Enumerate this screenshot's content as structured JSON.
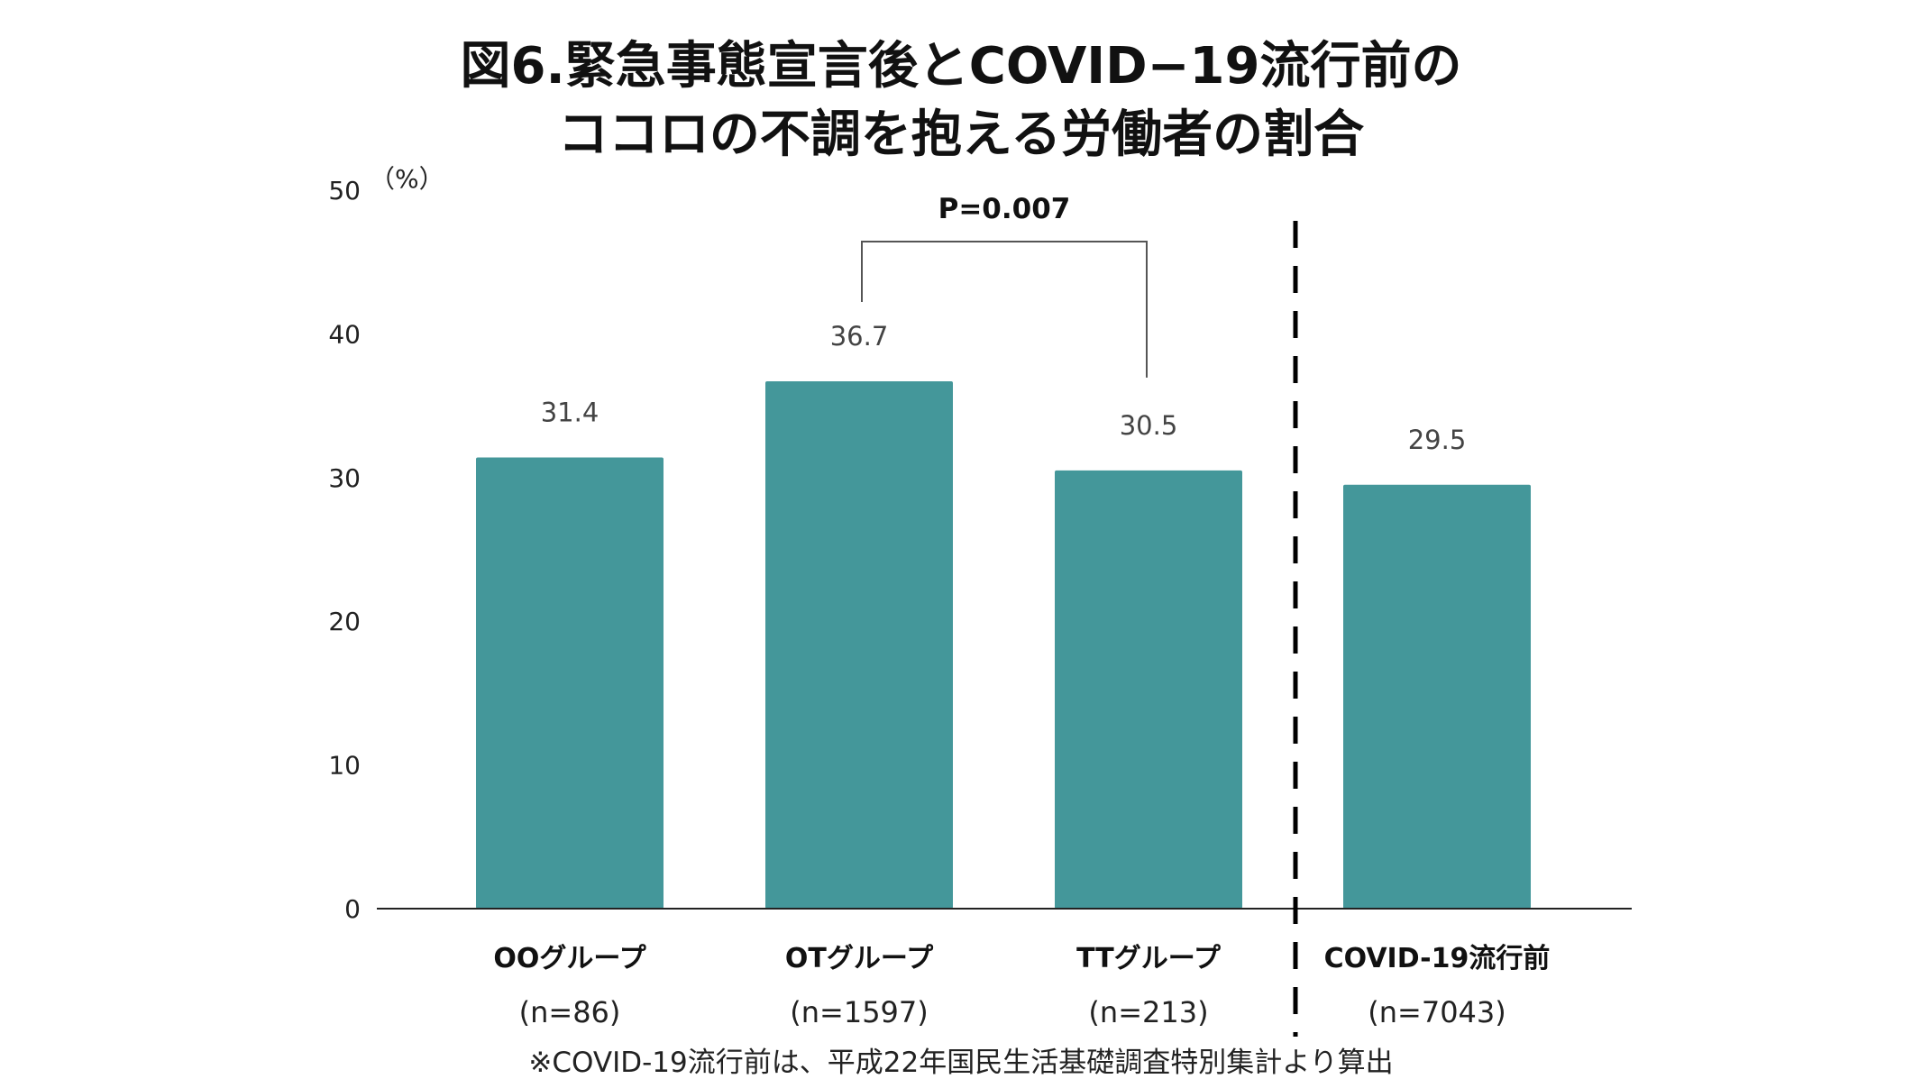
{
  "chart_data": {
    "type": "bar",
    "title_line1": "図6.緊急事態宣言後とCOVID−19流行前の",
    "title_line2": "ココロの不調を抱える労働者の割合",
    "unit_label": "（%）",
    "ylim": [
      0,
      50
    ],
    "yticks": [
      "0",
      "10",
      "20",
      "30",
      "40",
      "50"
    ],
    "grid": false,
    "categories": [
      "OOグループ",
      "OTグループ",
      "TTグループ",
      "COVID-19流行前"
    ],
    "sample_sizes": [
      "(n=86)",
      "(n=1597)",
      "(n=213)",
      "(n=7043)"
    ],
    "values": [
      31.4,
      36.7,
      30.5,
      29.5
    ],
    "value_labels": [
      "31.4",
      "36.7",
      "30.5",
      "29.5"
    ],
    "bar_color": "#44979a",
    "significance": {
      "label": "P=0.007",
      "between": [
        "OTグループ",
        "TTグループ"
      ]
    },
    "divider": "dashed line between TTグループ and COVID-19流行前",
    "footnote": "※COVID-19流行前は、平成22年国民生活基礎調査特別集計より算出"
  }
}
